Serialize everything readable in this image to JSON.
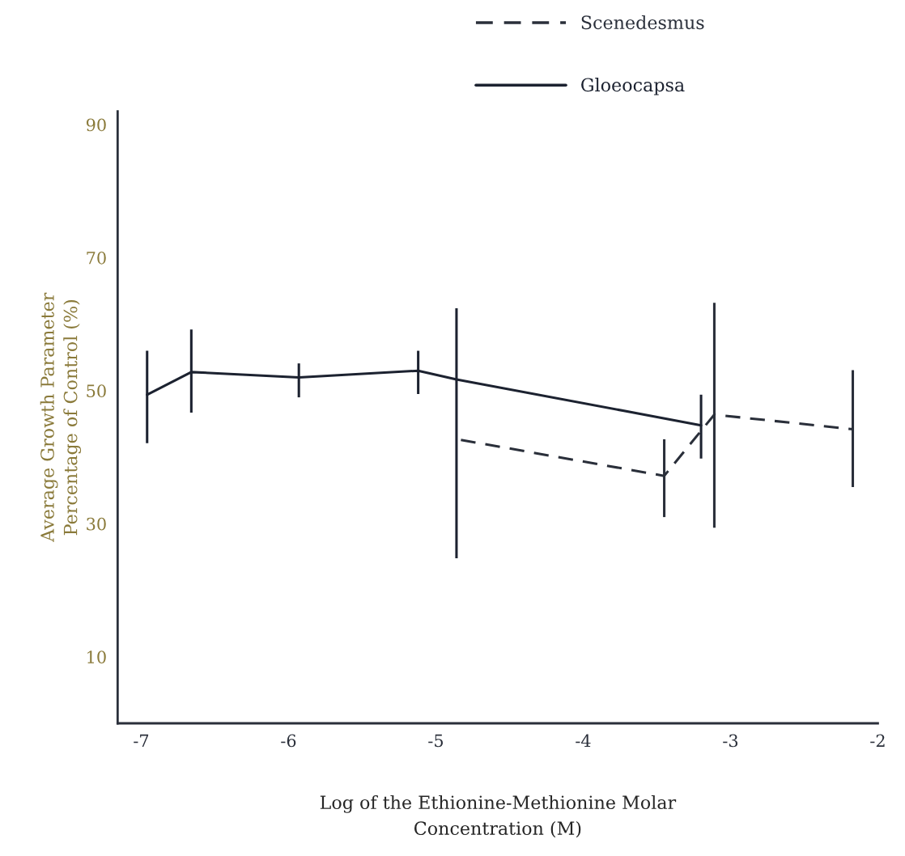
{
  "chart_data": {
    "type": "line",
    "xlabel": "Log of the Ethionine-Methionine Molar\nConcentration (M)",
    "ylabel": "Average Growth Parameter\nPercentage of Control (%)",
    "xlim": [
      -7.16,
      -2
    ],
    "xticks": [
      -7,
      -6,
      -5,
      -4,
      -3,
      -2
    ],
    "ylim": [
      0,
      92
    ],
    "yticks": [
      10,
      30,
      50,
      70,
      90
    ],
    "grid": false,
    "legend": "top",
    "marker": "none",
    "series": [
      {
        "name": "Scenedesmus",
        "color": "#2a2f3a",
        "line_style": "dashed",
        "x": [
          -4.83,
          -3.45,
          -3.11,
          -2.17
        ],
        "values": [
          42.6,
          37.2,
          46.4,
          44.2
        ],
        "errors": [
          null,
          [
            31.0,
            42.7
          ],
          [
            29.4,
            63.2
          ],
          [
            35.5,
            53.1
          ]
        ]
      },
      {
        "name": "Gloeocapsa",
        "color": "#1c2230",
        "line_style": "solid",
        "x": [
          -6.96,
          -6.66,
          -5.93,
          -5.12,
          -4.86,
          -3.2
        ],
        "values": [
          49.4,
          52.8,
          52.0,
          53.0,
          51.7,
          44.8
        ],
        "errors": [
          [
            42.1,
            56.0
          ],
          [
            46.7,
            59.2
          ],
          [
            49.0,
            54.1
          ],
          [
            49.5,
            56.0
          ],
          [
            24.8,
            62.4
          ],
          [
            39.8,
            49.4
          ]
        ]
      }
    ]
  }
}
